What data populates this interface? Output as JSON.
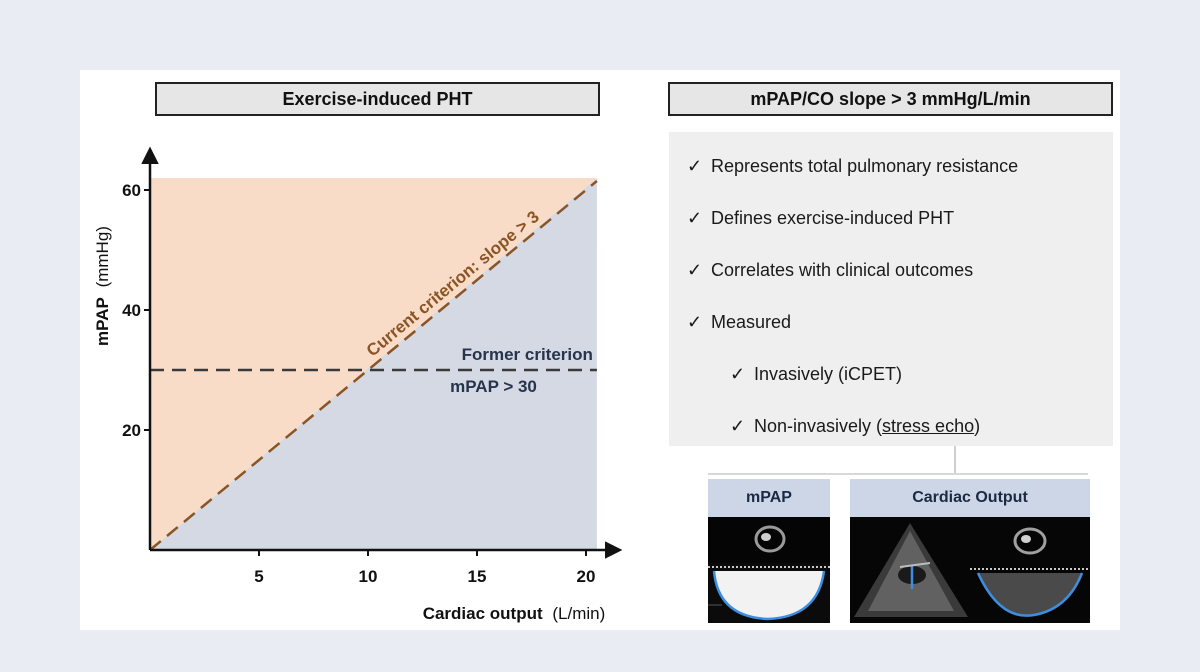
{
  "left_panel": {
    "title": "Exercise-induced PHT"
  },
  "right_panel": {
    "title": "mPAP/CO slope > 3 mmHg/L/min",
    "check_symbol": "✓",
    "criteria": [
      {
        "text": "Represents total pulmonary resistance",
        "level": 1
      },
      {
        "text": "Defines exercise-induced PHT",
        "level": 1
      },
      {
        "text": "Correlates with clinical outcomes",
        "level": 1
      },
      {
        "text": "Measured",
        "level": 1
      },
      {
        "text": "Invasively (iCPET)",
        "level": 2
      }
    ],
    "last_criterion": {
      "prefix": "Non-invasively (",
      "underlined": "stress echo",
      "suffix": ")"
    },
    "echo_images": {
      "mpap_label": "mPAP",
      "co_label": "Cardiac Output"
    }
  },
  "chart_data": {
    "type": "area",
    "title": "Exercise-induced PHT",
    "xlabel": "Cardiac output",
    "xlabel_unit": "(L/min)",
    "ylabel": "mPAP",
    "ylabel_unit": "(mmHg)",
    "xlim": [
      0,
      20.5
    ],
    "ylim": [
      0,
      62
    ],
    "x_ticks": [
      5,
      10,
      15,
      20
    ],
    "y_ticks": [
      20,
      40,
      60
    ],
    "regions": [
      {
        "name": "above slope",
        "color": "#f8dcc7"
      },
      {
        "name": "below slope",
        "color": "#d5d9e4"
      }
    ],
    "lines": [
      {
        "name": "Current criterion: slope > 3",
        "kind": "diagonal",
        "slope": 3,
        "color": "#8a5425",
        "label": "Current criterion: slope > 3"
      },
      {
        "name": "Former criterion",
        "kind": "horizontal",
        "y": 30,
        "color": "#3a3a3a",
        "label_line1": "Former criterion",
        "label_line2": "mPAP > 30"
      }
    ]
  }
}
